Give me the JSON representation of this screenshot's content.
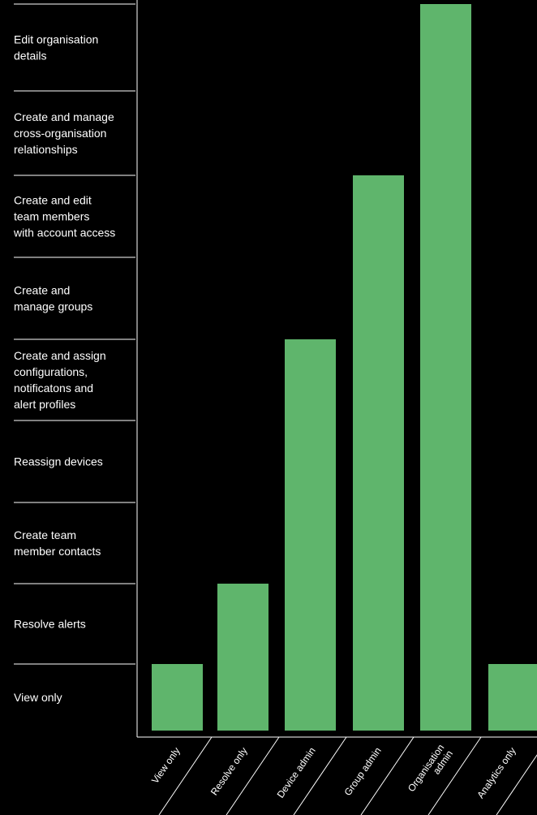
{
  "chart_data": {
    "type": "bar",
    "levels": [
      "View only",
      "Resolve alerts",
      "Create team member contacts",
      "Reassign devices",
      "Create and assign configurations, notificatons and alert profiles",
      "Create and manage groups",
      "Create and edit team members with account access",
      "Create and manage cross-organisation relationships",
      "Edit organisation details"
    ],
    "level_lines": [
      [
        "View only"
      ],
      [
        "Resolve alerts"
      ],
      [
        "Create team",
        "member contacts"
      ],
      [
        "Reassign devices"
      ],
      [
        "Create and assign",
        "configurations,",
        "notificatons and",
        "alert profiles"
      ],
      [
        "Create and",
        "manage groups"
      ],
      [
        "Create and edit",
        "team members",
        "with account access"
      ],
      [
        "Create and manage",
        "cross-organisation",
        "relationships"
      ],
      [
        "Edit organisation",
        "details"
      ]
    ],
    "categories": [
      "View only",
      "Resolve only",
      "Device admin",
      "Group admin",
      "Organisation admin",
      "Analytics only"
    ],
    "category_lines": [
      [
        "View only"
      ],
      [
        "Resolve only"
      ],
      [
        "Device admin"
      ],
      [
        "Group admin"
      ],
      [
        "Organisation",
        "admin"
      ],
      [
        "Analytics only"
      ]
    ],
    "values": [
      1,
      2,
      5,
      7,
      9,
      1
    ],
    "ylim": [
      0,
      9
    ],
    "grid": true,
    "legend": "none",
    "bar_color": "#5fb56c",
    "line_color": "#ffffff",
    "background": "#000000"
  }
}
